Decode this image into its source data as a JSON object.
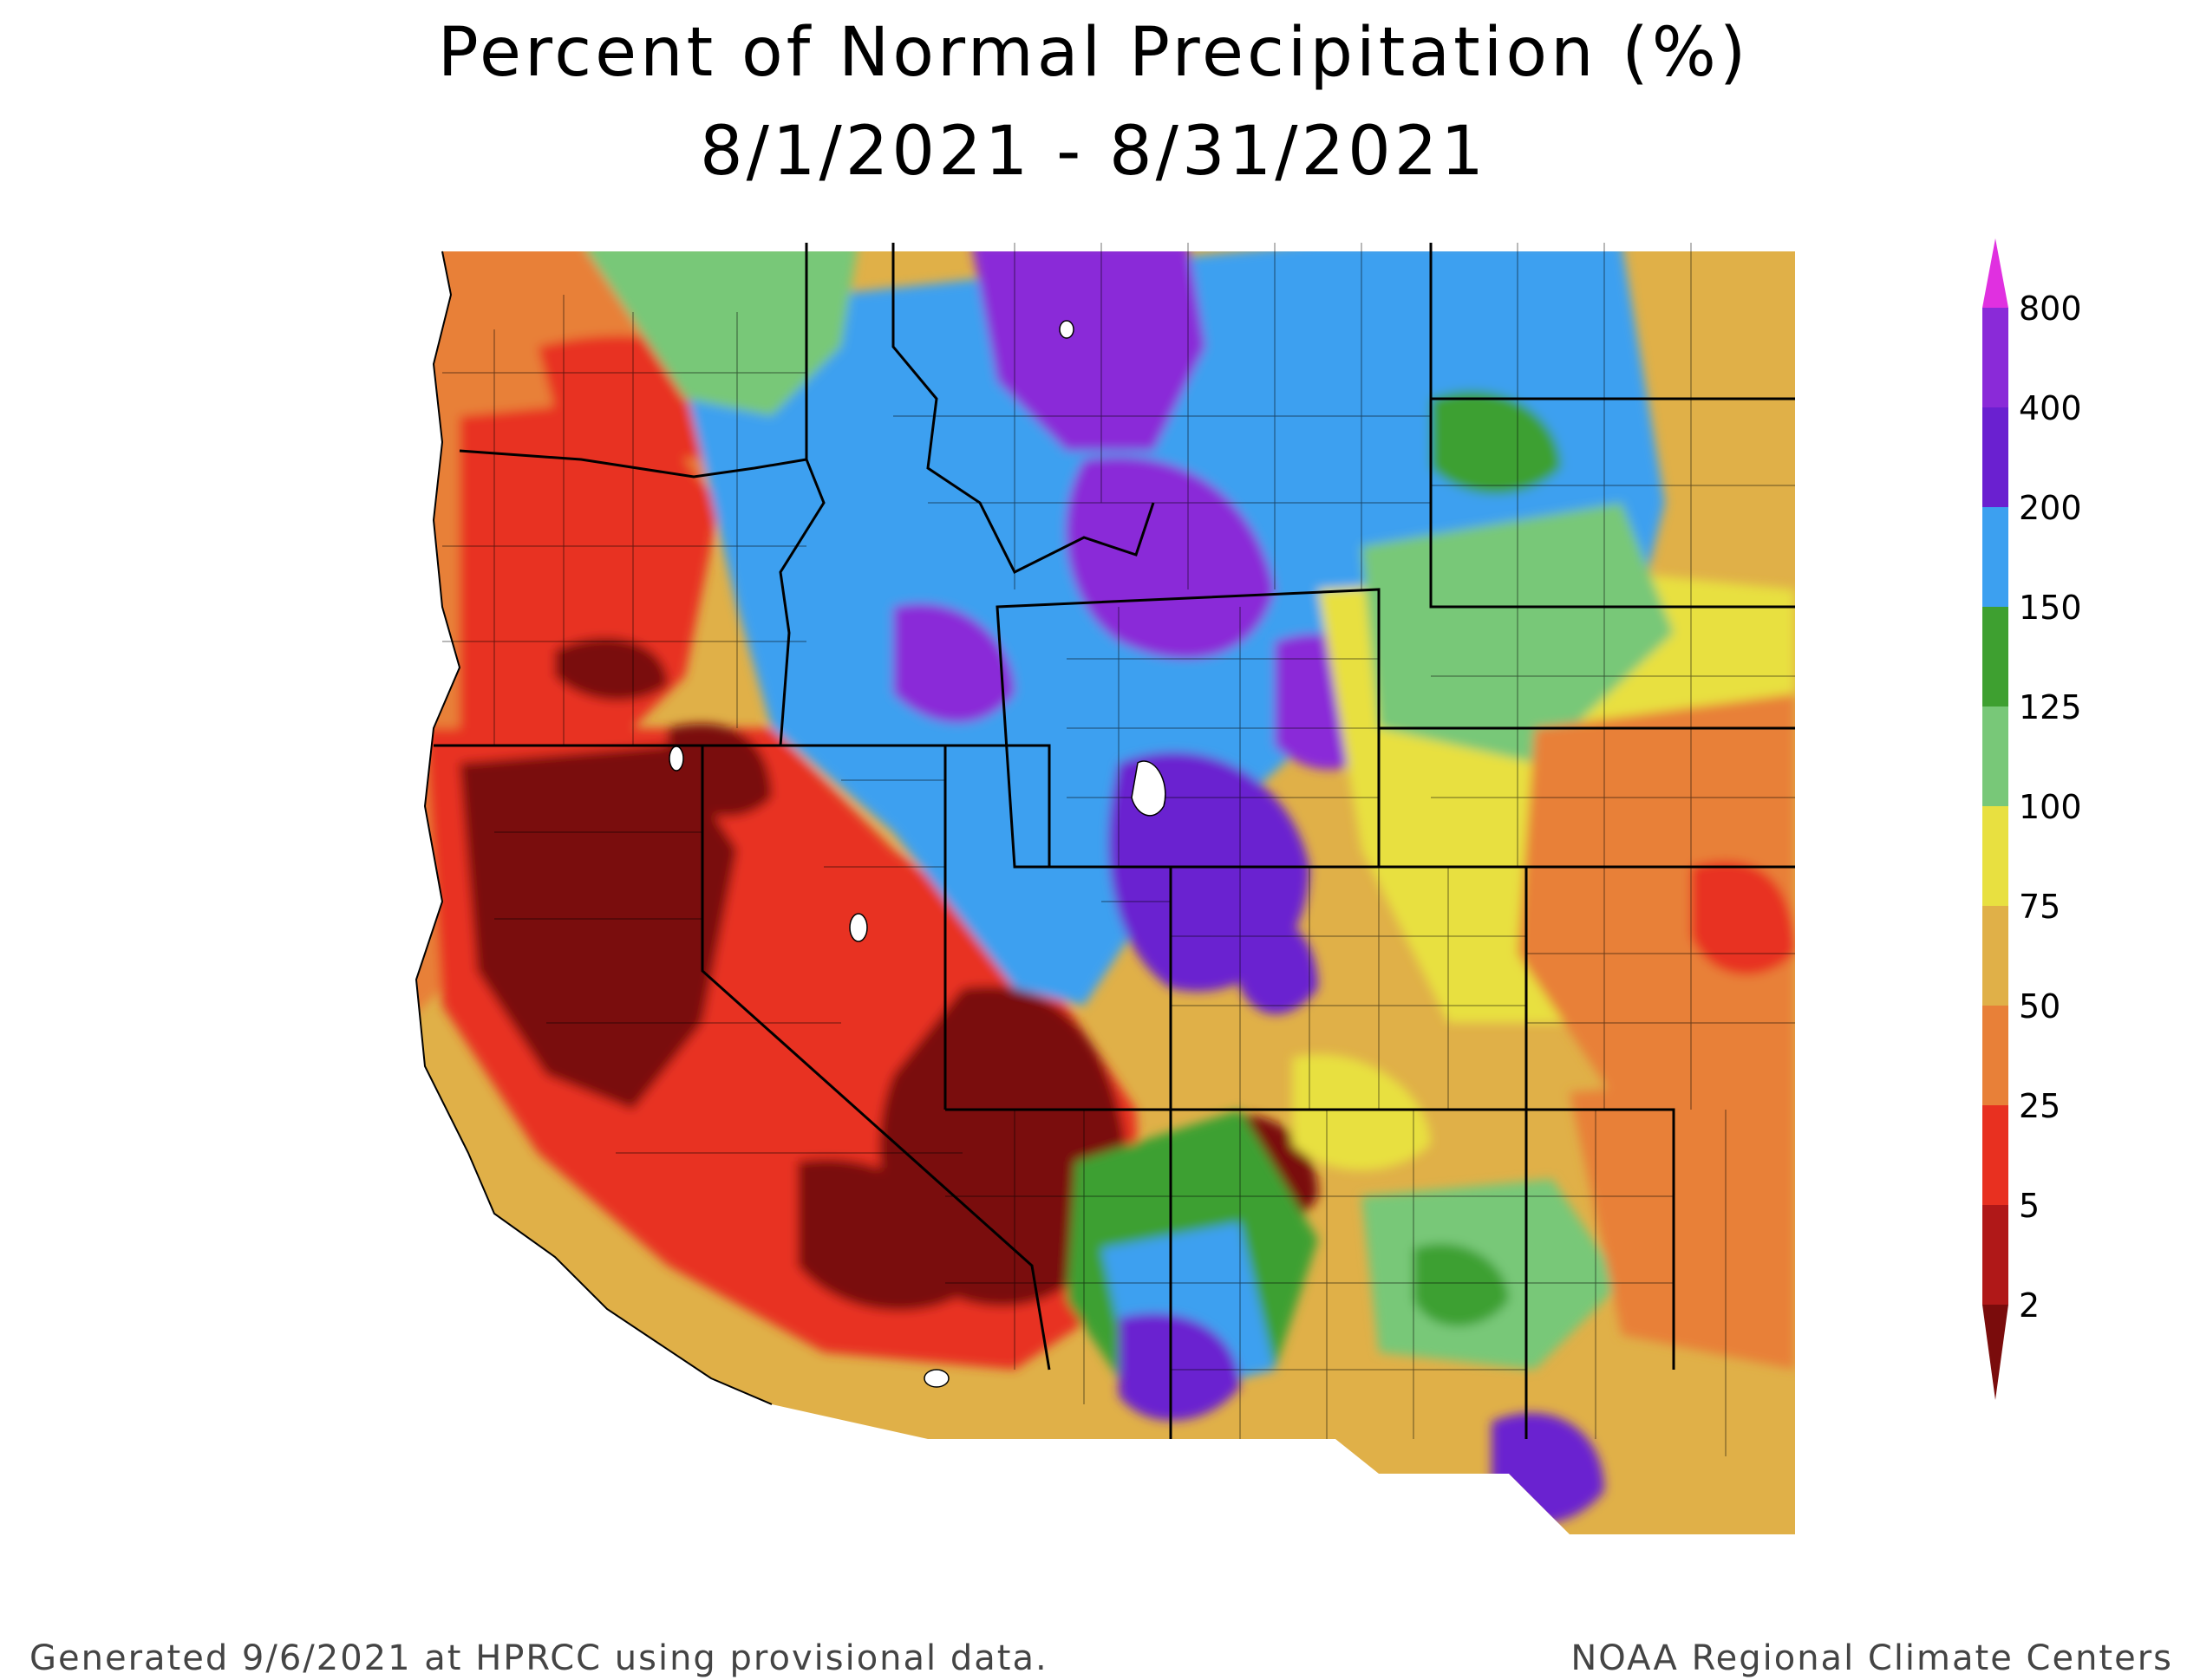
{
  "title": {
    "line1": "Percent of Normal Precipitation (%)",
    "line2": "8/1/2021 - 8/31/2021"
  },
  "legend": {
    "labels": [
      "800",
      "400",
      "200",
      "150",
      "125",
      "100",
      "75",
      "50",
      "25",
      "5",
      "2"
    ],
    "colors": [
      "#e030e0",
      "#8a2ad8",
      "#6a20d0",
      "#3ca0f0",
      "#3ea030",
      "#78c878",
      "#e8e040",
      "#e0b048",
      "#e88038",
      "#e83020",
      "#b01818",
      "#7a0c0c"
    ]
  },
  "palette": {
    "dark_red": "#7a0c0c",
    "red": "#e83020",
    "orange": "#e88038",
    "tan": "#e0b048",
    "yellow": "#e8e040",
    "light_green": "#78c878",
    "green": "#3ea030",
    "blue": "#3ca0f0",
    "purple": "#6a20d0",
    "violet": "#8a2ad8"
  },
  "footer": {
    "left": "Generated 9/6/2021 at HPRCC using provisional data.",
    "right": "NOAA Regional Climate Centers"
  }
}
